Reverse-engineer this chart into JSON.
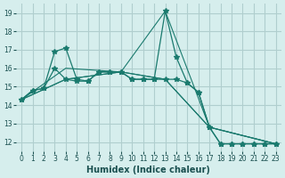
{
  "xlabel": "Humidex (Indice chaleur)",
  "ylabel": "",
  "background_color": "#d6eeed",
  "grid_color": "#b0cece",
  "line_color": "#1a7a6e",
  "xlim": [
    -0.5,
    23.5
  ],
  "ylim": [
    11.5,
    19.5
  ],
  "yticks": [
    12,
    13,
    14,
    15,
    16,
    17,
    18,
    19
  ],
  "xticks": [
    0,
    1,
    2,
    3,
    4,
    5,
    6,
    7,
    8,
    9,
    10,
    11,
    12,
    13,
    14,
    15,
    16,
    17,
    18,
    19,
    20,
    21,
    22,
    23
  ],
  "series": [
    {
      "x": [
        0,
        1,
        2,
        3,
        4,
        5,
        6,
        7,
        8,
        9,
        10,
        11,
        12,
        13,
        14,
        15,
        16,
        17,
        18,
        19,
        20,
        21,
        22,
        23
      ],
      "y": [
        14.3,
        14.8,
        14.9,
        16.9,
        17.1,
        15.4,
        15.3,
        15.8,
        15.8,
        15.8,
        15.4,
        15.4,
        15.4,
        19.1,
        16.6,
        15.2,
        14.7,
        12.8,
        11.9,
        11.9,
        11.9,
        11.9,
        11.9,
        11.9
      ],
      "marker": true
    },
    {
      "x": [
        0,
        1,
        2,
        3,
        4,
        5,
        6,
        7,
        8,
        9,
        10,
        11,
        12,
        13,
        14,
        15,
        16,
        17,
        18,
        19,
        20,
        21,
        22,
        23
      ],
      "y": [
        14.3,
        14.8,
        14.9,
        16.0,
        15.4,
        15.3,
        15.3,
        15.8,
        15.8,
        15.8,
        15.4,
        15.4,
        15.4,
        15.4,
        15.4,
        15.2,
        14.7,
        12.8,
        11.9,
        11.9,
        11.9,
        11.9,
        11.9,
        11.9
      ],
      "marker": true
    },
    {
      "x": [
        0,
        4,
        9,
        13,
        17,
        23
      ],
      "y": [
        14.3,
        16.0,
        15.8,
        19.1,
        12.8,
        11.9
      ],
      "marker": false
    },
    {
      "x": [
        0,
        4,
        9,
        13,
        17,
        23
      ],
      "y": [
        14.3,
        15.4,
        15.8,
        15.4,
        12.8,
        11.9
      ],
      "marker": false
    },
    {
      "x": [
        0,
        4,
        9,
        13,
        17,
        23
      ],
      "y": [
        14.3,
        15.4,
        15.8,
        15.4,
        12.8,
        11.9
      ],
      "marker": false
    }
  ]
}
